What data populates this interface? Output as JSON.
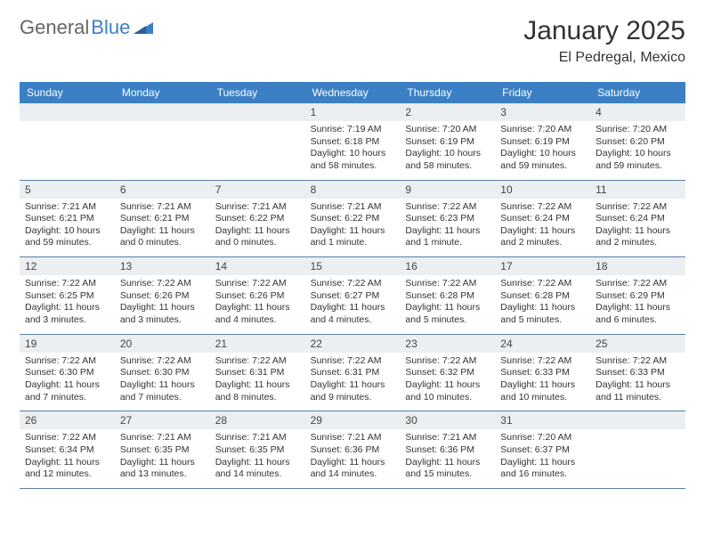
{
  "brand": {
    "part1": "General",
    "part2": "Blue"
  },
  "title": "January 2025",
  "location": "El Pedregal, Mexico",
  "colors": {
    "header_bg": "#3b7fc4",
    "daynum_bg": "#eceff1",
    "rule": "#5a7fa8",
    "text": "#333333",
    "page_bg": "#ffffff"
  },
  "dow": [
    "Sunday",
    "Monday",
    "Tuesday",
    "Wednesday",
    "Thursday",
    "Friday",
    "Saturday"
  ],
  "weeks": [
    [
      null,
      null,
      null,
      {
        "n": "1",
        "sr": "7:19 AM",
        "ss": "6:18 PM",
        "dl": "10 hours and 58 minutes."
      },
      {
        "n": "2",
        "sr": "7:20 AM",
        "ss": "6:19 PM",
        "dl": "10 hours and 58 minutes."
      },
      {
        "n": "3",
        "sr": "7:20 AM",
        "ss": "6:19 PM",
        "dl": "10 hours and 59 minutes."
      },
      {
        "n": "4",
        "sr": "7:20 AM",
        "ss": "6:20 PM",
        "dl": "10 hours and 59 minutes."
      }
    ],
    [
      {
        "n": "5",
        "sr": "7:21 AM",
        "ss": "6:21 PM",
        "dl": "10 hours and 59 minutes."
      },
      {
        "n": "6",
        "sr": "7:21 AM",
        "ss": "6:21 PM",
        "dl": "11 hours and 0 minutes."
      },
      {
        "n": "7",
        "sr": "7:21 AM",
        "ss": "6:22 PM",
        "dl": "11 hours and 0 minutes."
      },
      {
        "n": "8",
        "sr": "7:21 AM",
        "ss": "6:22 PM",
        "dl": "11 hours and 1 minute."
      },
      {
        "n": "9",
        "sr": "7:22 AM",
        "ss": "6:23 PM",
        "dl": "11 hours and 1 minute."
      },
      {
        "n": "10",
        "sr": "7:22 AM",
        "ss": "6:24 PM",
        "dl": "11 hours and 2 minutes."
      },
      {
        "n": "11",
        "sr": "7:22 AM",
        "ss": "6:24 PM",
        "dl": "11 hours and 2 minutes."
      }
    ],
    [
      {
        "n": "12",
        "sr": "7:22 AM",
        "ss": "6:25 PM",
        "dl": "11 hours and 3 minutes."
      },
      {
        "n": "13",
        "sr": "7:22 AM",
        "ss": "6:26 PM",
        "dl": "11 hours and 3 minutes."
      },
      {
        "n": "14",
        "sr": "7:22 AM",
        "ss": "6:26 PM",
        "dl": "11 hours and 4 minutes."
      },
      {
        "n": "15",
        "sr": "7:22 AM",
        "ss": "6:27 PM",
        "dl": "11 hours and 4 minutes."
      },
      {
        "n": "16",
        "sr": "7:22 AM",
        "ss": "6:28 PM",
        "dl": "11 hours and 5 minutes."
      },
      {
        "n": "17",
        "sr": "7:22 AM",
        "ss": "6:28 PM",
        "dl": "11 hours and 5 minutes."
      },
      {
        "n": "18",
        "sr": "7:22 AM",
        "ss": "6:29 PM",
        "dl": "11 hours and 6 minutes."
      }
    ],
    [
      {
        "n": "19",
        "sr": "7:22 AM",
        "ss": "6:30 PM",
        "dl": "11 hours and 7 minutes."
      },
      {
        "n": "20",
        "sr": "7:22 AM",
        "ss": "6:30 PM",
        "dl": "11 hours and 7 minutes."
      },
      {
        "n": "21",
        "sr": "7:22 AM",
        "ss": "6:31 PM",
        "dl": "11 hours and 8 minutes."
      },
      {
        "n": "22",
        "sr": "7:22 AM",
        "ss": "6:31 PM",
        "dl": "11 hours and 9 minutes."
      },
      {
        "n": "23",
        "sr": "7:22 AM",
        "ss": "6:32 PM",
        "dl": "11 hours and 10 minutes."
      },
      {
        "n": "24",
        "sr": "7:22 AM",
        "ss": "6:33 PM",
        "dl": "11 hours and 10 minutes."
      },
      {
        "n": "25",
        "sr": "7:22 AM",
        "ss": "6:33 PM",
        "dl": "11 hours and 11 minutes."
      }
    ],
    [
      {
        "n": "26",
        "sr": "7:22 AM",
        "ss": "6:34 PM",
        "dl": "11 hours and 12 minutes."
      },
      {
        "n": "27",
        "sr": "7:21 AM",
        "ss": "6:35 PM",
        "dl": "11 hours and 13 minutes."
      },
      {
        "n": "28",
        "sr": "7:21 AM",
        "ss": "6:35 PM",
        "dl": "11 hours and 14 minutes."
      },
      {
        "n": "29",
        "sr": "7:21 AM",
        "ss": "6:36 PM",
        "dl": "11 hours and 14 minutes."
      },
      {
        "n": "30",
        "sr": "7:21 AM",
        "ss": "6:36 PM",
        "dl": "11 hours and 15 minutes."
      },
      {
        "n": "31",
        "sr": "7:20 AM",
        "ss": "6:37 PM",
        "dl": "11 hours and 16 minutes."
      },
      null
    ]
  ],
  "labels": {
    "sunrise": "Sunrise: ",
    "sunset": "Sunset: ",
    "daylight": "Daylight: "
  }
}
